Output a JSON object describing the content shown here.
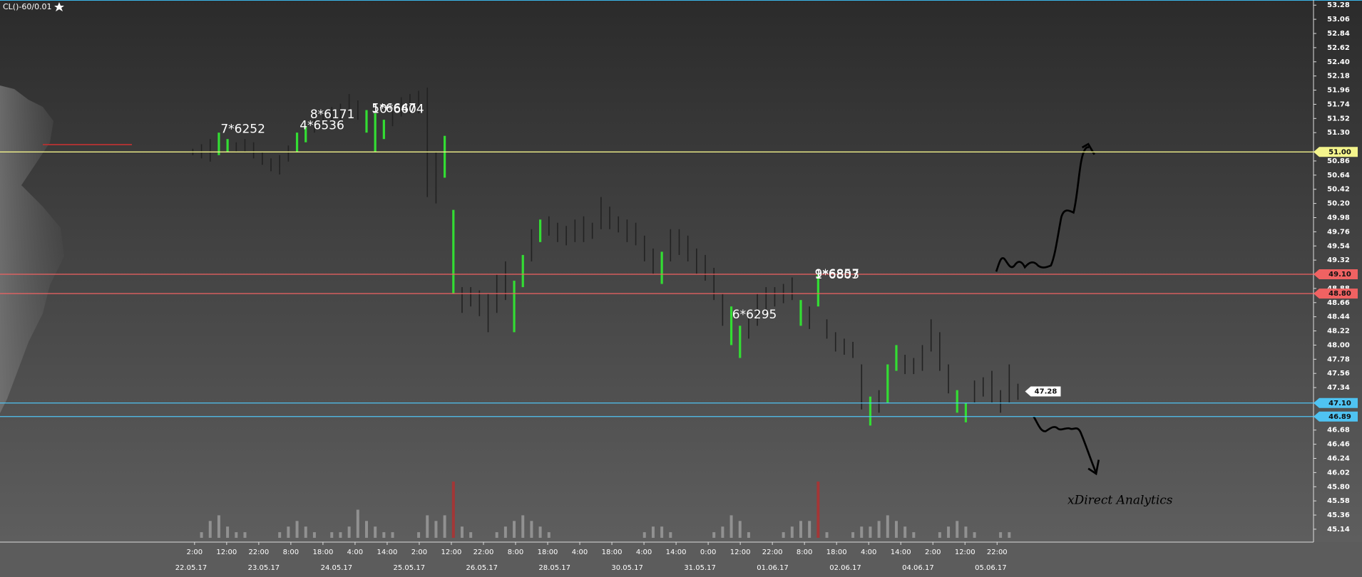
{
  "chart_data": {
    "type": "ohlc",
    "title": "CL()-60/0.01",
    "watermark": "xDirect Analytics",
    "ylim": [
      44.94,
      53.36
    ],
    "yticks": [
      53.28,
      53.06,
      52.84,
      52.62,
      {
        "value": 52.4,
        "label": "52.40"
      },
      52.18,
      51.96,
      51.74,
      51.52,
      {
        "value": 51.3,
        "label": "51.30"
      },
      50.86,
      50.64,
      50.42,
      {
        "value": 50.2,
        "label": "50.20"
      },
      49.98,
      49.76,
      49.54,
      49.32,
      48.88,
      48.66,
      48.44,
      48.22,
      {
        "value": 48,
        "label": "48.00"
      },
      47.78,
      47.56,
      47.34,
      46.68,
      46.46,
      46.24,
      46.02,
      {
        "value": 45.8,
        "label": "45.80"
      },
      45.58,
      45.36,
      45.14
    ],
    "x_time_labels": [
      "2:00",
      "12:00",
      "22:00",
      "8:00",
      "18:00",
      "4:00",
      "14:00",
      "2:00",
      "12:00",
      "22:00",
      "8:00",
      "18:00",
      "4:00",
      "18:00",
      "4:00",
      "14:00",
      "0:00",
      "12:00",
      "22:00",
      "8:00",
      "18:00",
      "4:00",
      "14:00",
      "2:00",
      "12:00",
      "22:00"
    ],
    "x_date_labels": [
      "22.05.17",
      "23.05.17",
      "24.05.17",
      "25.05.17",
      "26.05.17",
      "28.05.17",
      "30.05.17",
      "31.05.17",
      "01.06.17",
      "02.06.17",
      "04.06.17",
      "05.06.17"
    ],
    "bars": {
      "high": [
        51.05,
        51.12,
        51.2,
        51.3,
        51.2,
        51.15,
        51.2,
        51.15,
        51.0,
        50.9,
        50.95,
        51.1,
        51.3,
        51.4,
        51.6,
        51.65,
        51.7,
        51.75,
        51.9,
        51.8,
        51.65,
        51.6,
        51.5,
        51.7,
        51.85,
        51.9,
        51.95,
        52.0,
        51.0,
        51.25,
        50.1,
        48.9,
        48.9,
        48.85,
        48.8,
        49.1,
        49.3,
        49.0,
        49.4,
        49.8,
        49.95,
        50.0,
        49.9,
        49.85,
        49.95,
        50.0,
        49.9,
        50.3,
        50.15,
        50.0,
        49.95,
        49.9,
        49.7,
        49.5,
        49.45,
        49.8,
        49.8,
        49.7,
        49.5,
        49.4,
        49.2,
        48.8,
        48.6,
        48.3,
        48.5,
        48.8,
        48.9,
        48.9,
        48.95,
        49.05,
        48.7,
        48.6,
        49.1,
        48.4,
        48.2,
        48.1,
        48.05,
        47.7,
        47.2,
        47.3,
        47.7,
        48.0,
        47.85,
        47.8,
        48.0,
        48.4,
        48.2,
        47.7,
        47.3,
        47.1,
        47.45,
        47.5,
        47.6,
        47.3,
        47.7,
        47.4
      ],
      "low": [
        50.95,
        50.9,
        50.85,
        50.95,
        51.0,
        51.0,
        51.0,
        50.9,
        50.8,
        50.7,
        50.65,
        50.85,
        51.0,
        51.15,
        51.3,
        51.45,
        51.45,
        51.5,
        51.6,
        51.5,
        51.3,
        51.0,
        51.2,
        51.4,
        51.55,
        51.6,
        51.6,
        50.3,
        50.2,
        50.6,
        48.8,
        48.5,
        48.6,
        48.45,
        48.2,
        48.5,
        48.7,
        48.2,
        48.9,
        49.3,
        49.6,
        49.7,
        49.6,
        49.55,
        49.6,
        49.6,
        49.65,
        49.8,
        49.8,
        49.75,
        49.6,
        49.55,
        49.3,
        49.1,
        48.95,
        49.3,
        49.4,
        49.3,
        49.1,
        49.0,
        48.7,
        48.3,
        48.0,
        47.8,
        48.1,
        48.3,
        48.5,
        48.6,
        48.65,
        48.7,
        48.3,
        48.25,
        48.6,
        48.1,
        47.9,
        47.85,
        47.8,
        47.0,
        46.75,
        46.95,
        47.1,
        47.6,
        47.55,
        47.55,
        47.6,
        47.9,
        47.6,
        47.25,
        46.95,
        46.8,
        47.1,
        47.2,
        47.1,
        46.95,
        47.1,
        47.15
      ],
      "colors": [
        "#222",
        "#222",
        "#222",
        "#3d3",
        "#3d3",
        "#222",
        "#222",
        "#222",
        "#222",
        "#222",
        "#222",
        "#222",
        "#3d3",
        "#3d3",
        "#222",
        "#222",
        "#222",
        "#222",
        "#222",
        "#222",
        "#3d3",
        "#3d3",
        "#3d3",
        "#222",
        "#222",
        "#222",
        "#222",
        "#222",
        "#222",
        "#3d3",
        "#3d3",
        "#222",
        "#222",
        "#222",
        "#222",
        "#222",
        "#222",
        "#3d3",
        "#3d3",
        "#222",
        "#3d3",
        "#222",
        "#222",
        "#222",
        "#222",
        "#222",
        "#222",
        "#222",
        "#222",
        "#222",
        "#222",
        "#222",
        "#222",
        "#222",
        "#3d3",
        "#222",
        "#222",
        "#222",
        "#222",
        "#222",
        "#222",
        "#222",
        "#3d3",
        "#3d3",
        "#222",
        "#222",
        "#222",
        "#222",
        "#222",
        "#222",
        "#3d3",
        "#222",
        "#3d3",
        "#222",
        "#222",
        "#222",
        "#222",
        "#222",
        "#3d3",
        "#222",
        "#3d3",
        "#3d3",
        "#222",
        "#222",
        "#222",
        "#222",
        "#222",
        "#222",
        "#3d3",
        "#3d3",
        "#222",
        "#222",
        "#222",
        "#222",
        "#222",
        "#222"
      ]
    },
    "volume": {
      "values": [
        0,
        1,
        3,
        4,
        2,
        1,
        1,
        0,
        0,
        0,
        1,
        2,
        3,
        2,
        1,
        0,
        1,
        1,
        2,
        5,
        3,
        2,
        1,
        1,
        0,
        0,
        1,
        4,
        3,
        4,
        10,
        2,
        1,
        0,
        0,
        1,
        2,
        3,
        4,
        3,
        2,
        1,
        0,
        0,
        0,
        0,
        0,
        0,
        0,
        0,
        0,
        0,
        1,
        2,
        2,
        1,
        0,
        0,
        0,
        0,
        1,
        2,
        4,
        3,
        1,
        0,
        0,
        0,
        1,
        2,
        3,
        3,
        10,
        1,
        0,
        0,
        1,
        2,
        2,
        3,
        4,
        3,
        2,
        1,
        0,
        0,
        1,
        2,
        3,
        2,
        1,
        0,
        0,
        1,
        1,
        0
      ],
      "color": "#9a9a9a",
      "peak_color": "#b03030"
    },
    "levels": [
      {
        "value": 51,
        "label": "51.00",
        "color": "#f4f48c"
      },
      {
        "value": 49.1,
        "label": "49.10",
        "color": "#f06262"
      },
      {
        "value": 48.8,
        "label": "48.80",
        "color": "#f06262"
      },
      {
        "value": 47.1,
        "label": "47.10",
        "color": "#4fc3f2"
      },
      {
        "value": 46.89,
        "label": "46.89",
        "color": "#4fc3f2"
      }
    ],
    "last_price": {
      "value": 47.28,
      "label": "47.28"
    },
    "annotations": [
      "7*6252",
      "4*6536",
      "8*6171",
      "5*6647",
      "10*6604",
      "9*6857",
      "1*6803",
      "6*6295"
    ]
  }
}
